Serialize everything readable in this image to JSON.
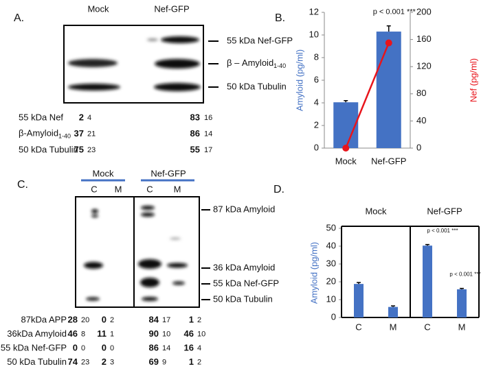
{
  "panel_a": {
    "label": "A.",
    "columns": [
      "Mock",
      "Nef-GFP"
    ],
    "bands": [
      {
        "text": "55 kDa Nef-GFP"
      },
      {
        "text": "β – Amyloid",
        "sub": "1-40"
      },
      {
        "text": "50 kDa Tubulin"
      }
    ],
    "quant": [
      {
        "label": "55 kDa Nef",
        "values": [
          2,
          4,
          83,
          16
        ]
      },
      {
        "label": "β-Amyloid",
        "sub": "1-40",
        "values": [
          37,
          21,
          86,
          14
        ]
      },
      {
        "label": "50 kDa Tubulin",
        "values": [
          75,
          23,
          55,
          17
        ]
      }
    ]
  },
  "panel_c": {
    "label": "C.",
    "groups": [
      "Mock",
      "Nef-GFP"
    ],
    "lanes": [
      "C",
      "M",
      "C",
      "M"
    ],
    "bands": [
      "87 kDa Amyloid",
      "36 kDa Amyloid",
      "55 kDa Nef-GFP",
      "50 kDa Tubulin"
    ],
    "quant": [
      {
        "label": "87kDa APP",
        "values": [
          28,
          20,
          0,
          2,
          84,
          17,
          1,
          2
        ]
      },
      {
        "label": "36kDa Amyloid",
        "values": [
          46,
          8,
          11,
          1,
          90,
          10,
          46,
          10
        ]
      },
      {
        "label": "55 kDa Nef-GFP",
        "values": [
          0,
          0,
          0,
          0,
          86,
          14,
          16,
          4
        ]
      },
      {
        "label": "50 kDa Tubulin",
        "values": [
          74,
          23,
          2,
          3,
          69,
          9,
          1,
          2
        ]
      }
    ]
  },
  "chart_data": [
    {
      "type": "bar",
      "label": "B.",
      "categories": [
        "Mock",
        "Nef-GFP"
      ],
      "series": [
        {
          "type": "bar",
          "color": "#4472c4",
          "values": [
            4.05,
            10.3
          ],
          "errors": [
            0.15,
            0.5
          ]
        },
        {
          "type": "line",
          "axis": "y2",
          "color": "#e8141b",
          "values": [
            0,
            155
          ]
        }
      ],
      "ylabel": "Amyloid (pg/ml)",
      "y2label": "Nef (pg/ml)",
      "ylim": [
        0,
        12
      ],
      "yticks": [
        0,
        2,
        4,
        6,
        8,
        10,
        12
      ],
      "y2lim": [
        0,
        200
      ],
      "y2ticks": [
        0,
        40,
        80,
        120,
        160,
        200
      ],
      "annotations": [
        "p < 0.001 ***"
      ]
    },
    {
      "type": "bar",
      "label": "D.",
      "groups": [
        "Mock",
        "Nef-GFP"
      ],
      "categories": [
        "C",
        "M",
        "C",
        "M"
      ],
      "series": [
        {
          "type": "bar",
          "color": "#4472c4",
          "values": [
            18.8,
            5.9,
            40.3,
            15.8
          ],
          "errors": [
            0.8,
            0.6,
            0.6,
            0.5
          ]
        }
      ],
      "ylabel": "Amyloid (pg/ml)",
      "ylim": [
        0,
        50
      ],
      "yticks": [
        0,
        10,
        20,
        30,
        40,
        50
      ],
      "annotations": [
        "p < 0.001 ***",
        "p < 0.001 ***"
      ]
    }
  ]
}
